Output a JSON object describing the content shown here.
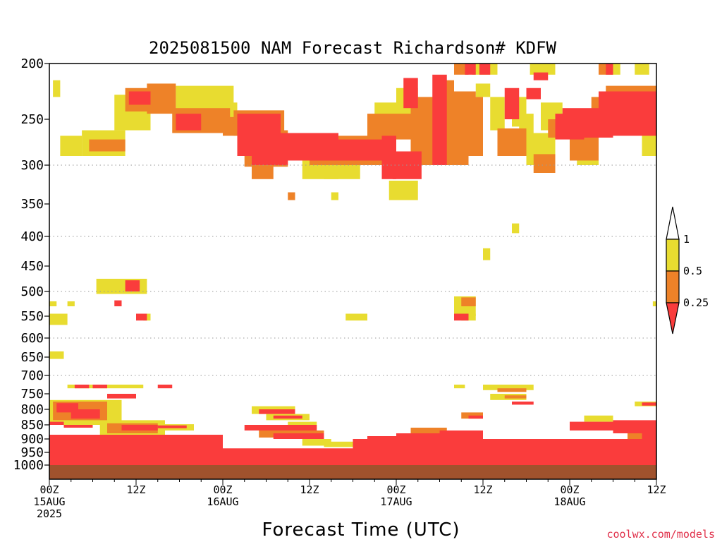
{
  "chart_data": {
    "type": "heatmap",
    "title": "2025081500 NAM Forecast Richardson# KDFW",
    "xlabel": "Forecast Time (UTC)",
    "ylabel": "",
    "y_axis": "pressure (hPa), inverted, log-like",
    "ylim": [
      1000,
      200
    ],
    "xlim_hours": [
      0,
      84
    ],
    "grid": "dotted horizontal at 300, 400, 500, 600, 700",
    "y_ticks": [
      200,
      250,
      300,
      350,
      400,
      450,
      500,
      550,
      600,
      650,
      700,
      750,
      800,
      850,
      900,
      950,
      1000
    ],
    "x_ticks": [
      {
        "hour": 0,
        "line1": "00Z",
        "line2": "15AUG",
        "line3": "2025"
      },
      {
        "hour": 12,
        "line1": "12Z",
        "line2": "",
        "line3": ""
      },
      {
        "hour": 24,
        "line1": "00Z",
        "line2": "16AUG",
        "line3": ""
      },
      {
        "hour": 36,
        "line1": "12Z",
        "line2": "",
        "line3": ""
      },
      {
        "hour": 48,
        "line1": "00Z",
        "line2": "17AUG",
        "line3": ""
      },
      {
        "hour": 60,
        "line1": "12Z",
        "line2": "",
        "line3": ""
      },
      {
        "hour": 72,
        "line1": "00Z",
        "line2": "18AUG",
        "line3": ""
      },
      {
        "hour": 84,
        "line1": "12Z",
        "line2": "",
        "line3": ""
      }
    ],
    "colorbar": {
      "labels": [
        "1",
        "0.5",
        "0.25"
      ],
      "bins": [
        {
          "range": "0.5-1",
          "color": "#e8dc30"
        },
        {
          "range": "0.25-0.5",
          "color": "#ee8228"
        },
        {
          "range": "<0.25",
          "color": "#fa3c3c"
        }
      ]
    },
    "categories_legend": {
      "1": "0.5 to 1",
      "2": "0.25 to 0.5",
      "3": "below 0.25"
    },
    "ground_color": "#a0522d",
    "patches_note": "cells: [hour_start, hour_end, p_top, p_bottom, category]",
    "patches": [
      [
        0.5,
        1.5,
        215,
        230,
        1
      ],
      [
        1.5,
        4.5,
        268,
        290,
        1
      ],
      [
        4.5,
        10.5,
        262,
        290,
        1
      ],
      [
        5.5,
        10.5,
        272,
        285,
        2
      ],
      [
        9,
        14,
        228,
        262,
        1
      ],
      [
        10.5,
        14.5,
        222,
        243,
        2
      ],
      [
        11,
        14,
        225,
        237,
        3
      ],
      [
        13.5,
        17.5,
        218,
        245,
        2
      ],
      [
        17.5,
        25.5,
        220,
        262,
        1
      ],
      [
        20,
        26,
        235,
        262,
        1
      ],
      [
        17,
        25,
        240,
        265,
        2
      ],
      [
        17.5,
        21,
        245,
        262,
        3
      ],
      [
        24,
        28,
        248,
        268,
        2
      ],
      [
        25.5,
        32.5,
        242,
        268,
        2
      ],
      [
        26,
        32,
        245,
        290,
        3
      ],
      [
        28,
        30,
        270,
        292,
        3
      ],
      [
        27,
        33,
        262,
        302,
        2
      ],
      [
        28,
        33,
        278,
        300,
        3
      ],
      [
        28,
        31,
        290,
        318,
        2
      ],
      [
        31.5,
        40,
        265,
        290,
        3
      ],
      [
        32,
        48,
        272,
        295,
        3
      ],
      [
        36,
        48,
        268,
        300,
        2
      ],
      [
        35,
        43,
        290,
        318,
        1
      ],
      [
        38,
        40,
        310,
        318,
        1
      ],
      [
        46,
        48,
        268,
        318,
        3
      ],
      [
        47.5,
        51.5,
        285,
        318,
        3
      ],
      [
        47,
        51,
        320,
        335,
        1
      ],
      [
        44,
        50,
        245,
        272,
        2
      ],
      [
        45,
        48,
        235,
        262,
        1
      ],
      [
        48,
        51,
        222,
        268,
        1
      ],
      [
        49,
        51,
        213,
        240,
        3
      ],
      [
        50,
        55,
        230,
        300,
        2
      ],
      [
        51,
        58,
        245,
        300,
        2
      ],
      [
        53,
        55,
        210,
        300,
        3
      ],
      [
        54,
        56,
        215,
        250,
        2
      ],
      [
        55,
        59,
        225,
        262,
        2
      ],
      [
        57,
        60,
        230,
        290,
        2
      ],
      [
        56,
        58,
        200,
        210,
        2
      ],
      [
        57.5,
        59,
        200,
        210,
        3
      ],
      [
        58.5,
        60,
        200,
        210,
        1
      ],
      [
        59.5,
        61,
        200,
        210,
        3
      ],
      [
        60,
        62,
        200,
        210,
        1
      ],
      [
        59,
        61,
        218,
        230,
        1
      ],
      [
        61,
        63,
        230,
        262,
        1
      ],
      [
        62,
        66,
        260,
        290,
        2
      ],
      [
        63,
        65,
        222,
        250,
        3
      ],
      [
        64,
        66,
        230,
        258,
        1
      ],
      [
        65,
        67,
        245,
        280,
        1
      ],
      [
        66,
        70,
        265,
        300,
        1
      ],
      [
        67,
        70,
        288,
        310,
        2
      ],
      [
        66.5,
        70,
        200,
        210,
        1
      ],
      [
        67,
        69,
        208,
        215,
        3
      ],
      [
        66,
        68,
        222,
        232,
        3
      ],
      [
        68,
        71,
        235,
        262,
        1
      ],
      [
        69,
        71,
        250,
        270,
        2
      ],
      [
        70,
        74,
        245,
        272,
        3
      ],
      [
        71,
        78,
        240,
        270,
        3
      ],
      [
        72,
        76,
        260,
        295,
        2
      ],
      [
        73,
        76,
        272,
        300,
        1
      ],
      [
        75,
        78,
        230,
        252,
        2
      ],
      [
        76,
        84,
        225,
        268,
        3
      ],
      [
        77,
        84,
        220,
        240,
        2
      ],
      [
        76,
        78,
        200,
        210,
        2
      ],
      [
        77,
        78,
        200,
        210,
        3
      ],
      [
        78,
        79,
        200,
        210,
        1
      ],
      [
        81,
        83,
        200,
        210,
        1
      ],
      [
        82,
        84,
        262,
        290,
        1
      ],
      [
        83,
        84,
        222,
        235,
        1
      ],
      [
        33,
        34,
        335,
        345,
        2
      ],
      [
        39,
        40,
        335,
        345,
        1
      ],
      [
        47,
        51,
        335,
        345,
        1
      ],
      [
        64,
        65,
        380,
        395,
        1
      ],
      [
        60,
        61,
        420,
        440,
        1
      ],
      [
        6.5,
        13.5,
        475,
        505,
        1
      ],
      [
        10.5,
        12.5,
        478,
        500,
        3
      ],
      [
        9,
        10,
        518,
        530,
        3
      ],
      [
        0,
        1,
        520,
        530,
        1
      ],
      [
        2.5,
        3.5,
        520,
        530,
        1
      ],
      [
        0,
        2.5,
        545,
        570,
        1
      ],
      [
        12,
        13.5,
        545,
        560,
        3
      ],
      [
        13,
        14,
        545,
        560,
        1
      ],
      [
        83.5,
        84,
        520,
        530,
        1
      ],
      [
        41,
        44,
        545,
        560,
        1
      ],
      [
        56,
        59,
        510,
        550,
        1
      ],
      [
        57,
        59,
        512,
        530,
        2
      ],
      [
        56,
        58,
        545,
        560,
        3
      ],
      [
        57,
        59,
        545,
        560,
        1
      ],
      [
        0,
        2,
        635,
        655,
        1
      ],
      [
        2.5,
        13,
        725,
        735,
        1
      ],
      [
        3.5,
        5.5,
        725,
        735,
        3
      ],
      [
        6,
        8,
        725,
        735,
        3
      ],
      [
        15,
        17,
        725,
        735,
        3
      ],
      [
        56,
        57.5,
        725,
        735,
        1
      ],
      [
        60,
        67,
        725,
        740,
        1
      ],
      [
        62,
        66,
        735,
        745,
        2
      ],
      [
        61,
        66,
        750,
        770,
        1
      ],
      [
        63,
        66,
        755,
        765,
        2
      ],
      [
        64,
        67,
        775,
        785,
        3
      ],
      [
        8,
        12,
        750,
        765,
        3
      ],
      [
        0,
        10,
        770,
        850,
        1
      ],
      [
        0.5,
        8,
        775,
        835,
        2
      ],
      [
        1,
        4,
        780,
        810,
        3
      ],
      [
        3,
        7,
        800,
        830,
        3
      ],
      [
        0,
        2,
        840,
        850,
        3
      ],
      [
        2,
        6,
        850,
        860,
        3
      ],
      [
        7,
        16,
        835,
        905,
        1
      ],
      [
        8,
        15,
        845,
        880,
        2
      ],
      [
        10,
        15,
        850,
        870,
        3
      ],
      [
        14,
        20,
        848,
        870,
        1
      ],
      [
        15,
        19,
        852,
        862,
        3
      ],
      [
        0,
        24,
        885,
        960,
        3
      ],
      [
        0,
        24,
        895,
        915,
        2
      ],
      [
        1,
        24,
        915,
        935,
        3
      ],
      [
        0,
        84,
        935,
        975,
        3
      ],
      [
        28,
        34,
        790,
        815,
        1
      ],
      [
        29,
        34,
        800,
        815,
        3
      ],
      [
        30,
        36,
        815,
        835,
        1
      ],
      [
        31,
        35,
        820,
        830,
        3
      ],
      [
        33,
        37,
        840,
        865,
        1
      ],
      [
        27,
        37,
        850,
        870,
        3
      ],
      [
        29,
        38,
        870,
        895,
        2
      ],
      [
        31,
        38,
        880,
        900,
        3
      ],
      [
        35,
        39,
        900,
        925,
        1
      ],
      [
        38,
        42,
        910,
        930,
        1
      ],
      [
        42,
        84,
        900,
        960,
        3
      ],
      [
        44,
        52,
        890,
        930,
        3
      ],
      [
        48,
        56,
        880,
        905,
        3
      ],
      [
        50,
        55,
        860,
        880,
        2
      ],
      [
        54,
        60,
        870,
        900,
        3
      ],
      [
        57,
        60,
        810,
        830,
        2
      ],
      [
        58,
        60,
        820,
        830,
        3
      ],
      [
        60,
        78,
        915,
        945,
        2
      ],
      [
        66,
        78,
        905,
        925,
        3
      ],
      [
        74,
        78,
        820,
        840,
        1
      ],
      [
        72,
        80,
        840,
        870,
        3
      ],
      [
        78,
        84,
        835,
        880,
        3
      ],
      [
        80,
        84,
        870,
        930,
        2
      ],
      [
        82,
        84,
        850,
        900,
        3
      ],
      [
        81,
        84,
        775,
        790,
        1
      ],
      [
        82,
        84,
        778,
        788,
        3
      ],
      [
        0,
        84,
        975,
        1000,
        3
      ],
      [
        10,
        22,
        950,
        965,
        1
      ],
      [
        22,
        30,
        945,
        960,
        1
      ],
      [
        36,
        40,
        945,
        955,
        1
      ],
      [
        76,
        84,
        960,
        972,
        1
      ]
    ]
  },
  "credit": "coolwx.com/models"
}
